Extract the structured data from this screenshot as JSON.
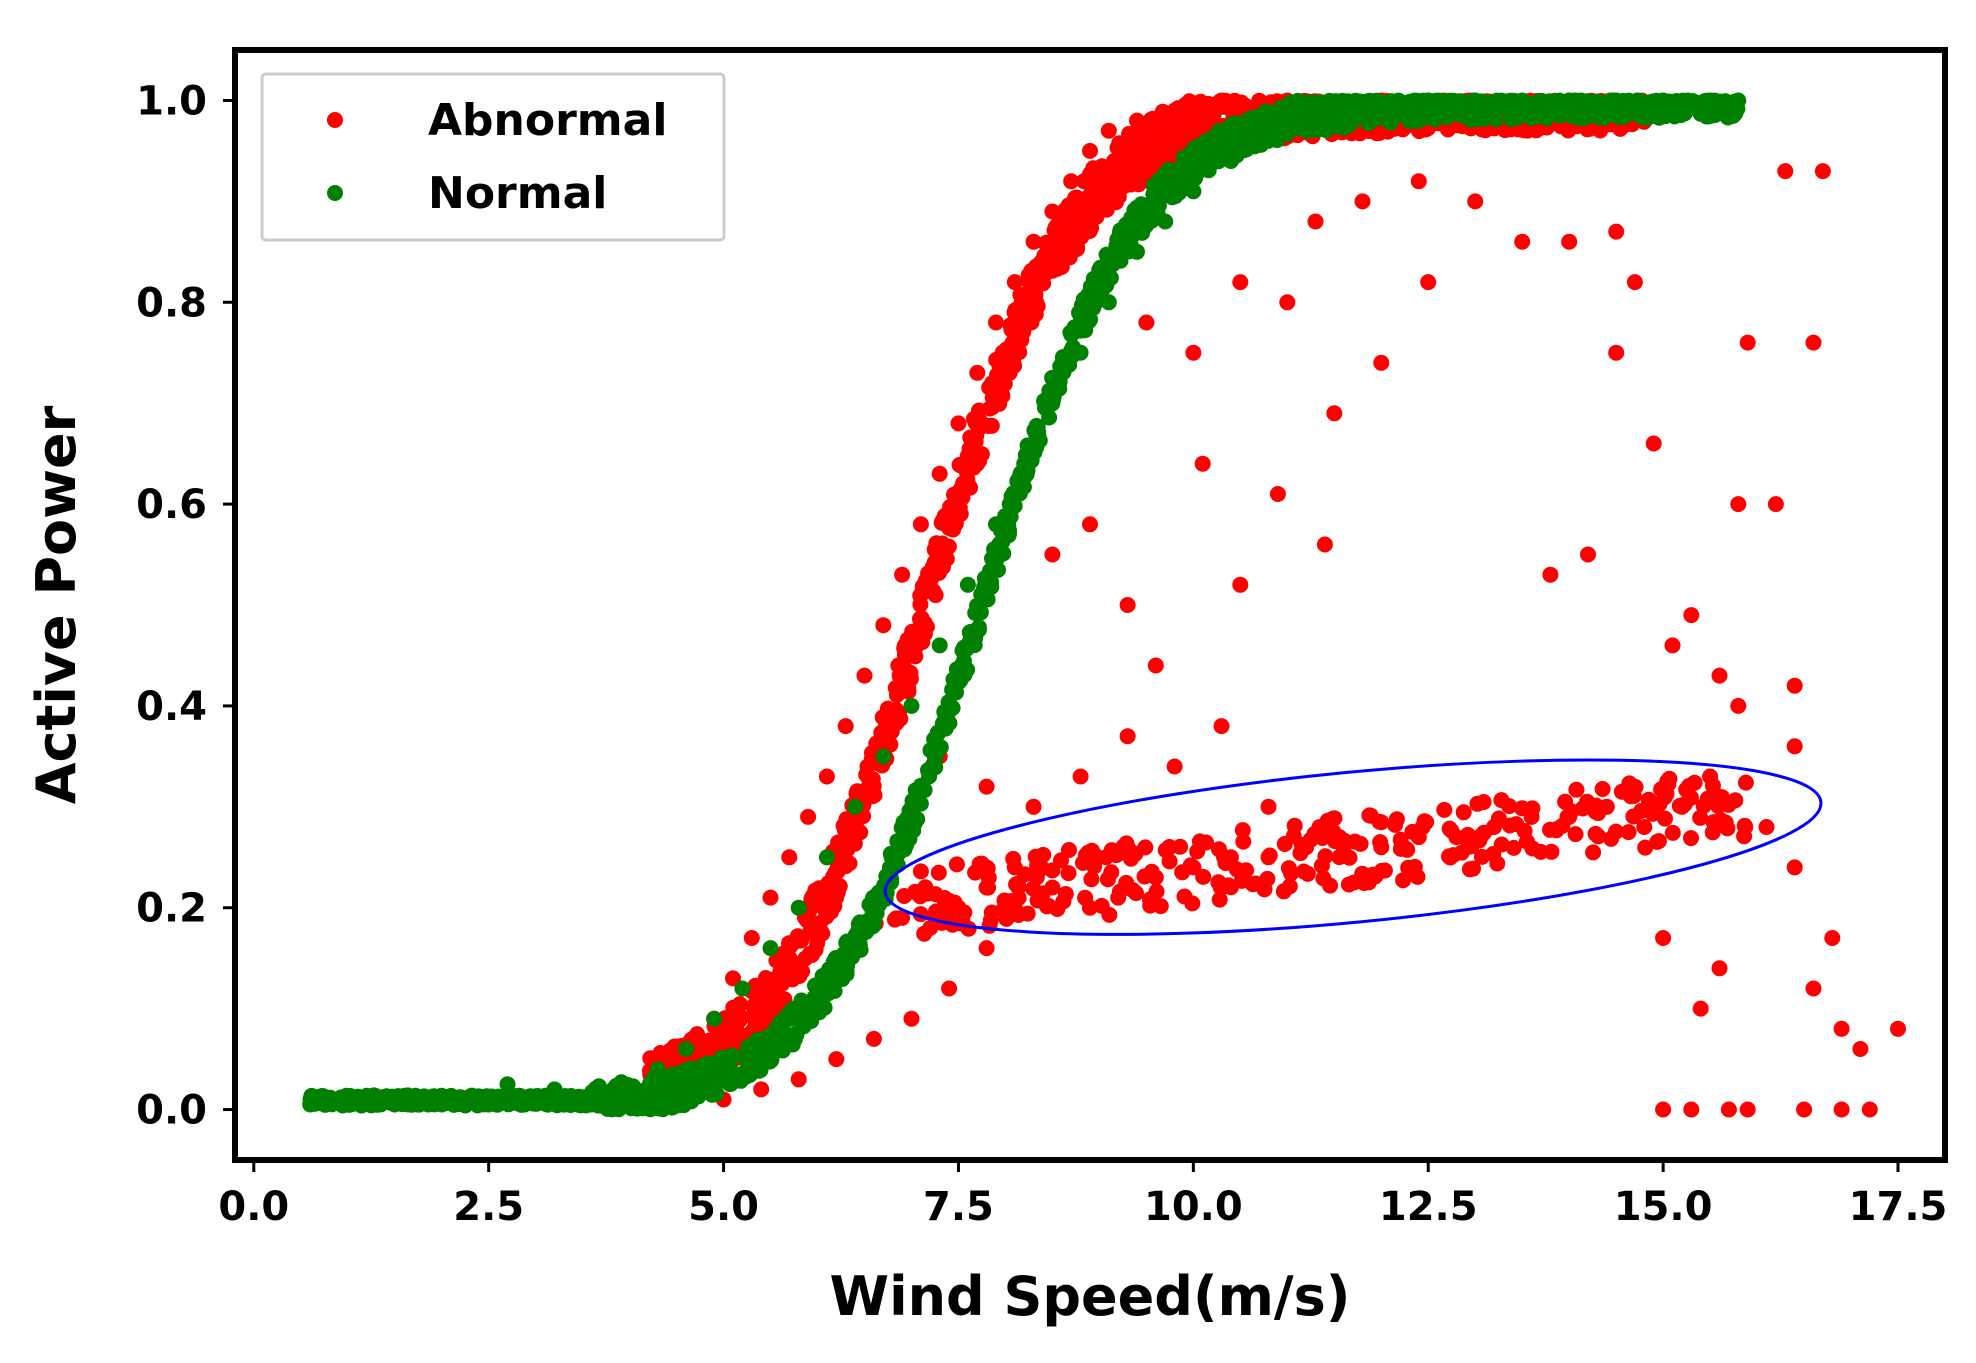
{
  "chart_data": {
    "type": "scatter",
    "title": "",
    "xlabel": "Wind Speed(m/s)",
    "ylabel": "Active Power",
    "xlim": [
      -0.2,
      18.0
    ],
    "ylim": [
      -0.05,
      1.05
    ],
    "xticks": [
      0.0,
      2.5,
      5.0,
      7.5,
      10.0,
      12.5,
      15.0,
      17.5
    ],
    "xtick_labels": [
      "0.0",
      "2.5",
      "5.0",
      "7.5",
      "10.0",
      "12.5",
      "15.0",
      "17.5"
    ],
    "yticks": [
      0.0,
      0.2,
      0.4,
      0.6,
      0.8,
      1.0
    ],
    "ytick_labels": [
      "0.0",
      "0.2",
      "0.4",
      "0.6",
      "0.8",
      "1.0"
    ],
    "legend_position": "top-left",
    "series": [
      {
        "name": "Abnormal",
        "color": "#ff0000",
        "description": "dense band left of normal curve plus scattered outliers",
        "points": [
          [
            4.3,
            0.01
          ],
          [
            4.5,
            0.03
          ],
          [
            4.7,
            0.05
          ],
          [
            4.9,
            0.09
          ],
          [
            5.1,
            0.13
          ],
          [
            5.3,
            0.17
          ],
          [
            5.5,
            0.21
          ],
          [
            5.7,
            0.25
          ],
          [
            5.9,
            0.29
          ],
          [
            6.1,
            0.33
          ],
          [
            6.3,
            0.38
          ],
          [
            6.5,
            0.43
          ],
          [
            6.7,
            0.48
          ],
          [
            6.9,
            0.53
          ],
          [
            7.1,
            0.58
          ],
          [
            7.3,
            0.63
          ],
          [
            7.5,
            0.68
          ],
          [
            7.7,
            0.73
          ],
          [
            7.9,
            0.78
          ],
          [
            8.1,
            0.82
          ],
          [
            8.3,
            0.86
          ],
          [
            8.5,
            0.89
          ],
          [
            8.7,
            0.92
          ],
          [
            8.9,
            0.95
          ],
          [
            9.1,
            0.97
          ],
          [
            9.4,
            0.98
          ],
          [
            9.8,
            0.99
          ],
          [
            10.3,
            1.0
          ],
          [
            11.0,
            1.0
          ],
          [
            12.0,
            1.0
          ],
          [
            13.0,
            1.0
          ],
          [
            14.0,
            1.0
          ],
          [
            14.8,
            0.99
          ],
          [
            5.0,
            0.01
          ],
          [
            5.4,
            0.02
          ],
          [
            5.8,
            0.03
          ],
          [
            6.2,
            0.05
          ],
          [
            6.6,
            0.07
          ],
          [
            7.0,
            0.09
          ],
          [
            7.4,
            0.12
          ],
          [
            7.8,
            0.16
          ],
          [
            6.6,
            0.21
          ],
          [
            6.9,
            0.19
          ],
          [
            7.2,
            0.18
          ],
          [
            7.5,
            0.2
          ],
          [
            7.8,
            0.22
          ],
          [
            8.1,
            0.24
          ],
          [
            8.5,
            0.22
          ],
          [
            8.9,
            0.2
          ],
          [
            9.2,
            0.21
          ],
          [
            9.6,
            0.23
          ],
          [
            10.0,
            0.24
          ],
          [
            10.4,
            0.25
          ],
          [
            10.8,
            0.25
          ],
          [
            11.2,
            0.26
          ],
          [
            11.6,
            0.26
          ],
          [
            12.0,
            0.26
          ],
          [
            12.4,
            0.27
          ],
          [
            12.8,
            0.27
          ],
          [
            13.2,
            0.28
          ],
          [
            13.6,
            0.29
          ],
          [
            14.0,
            0.29
          ],
          [
            14.4,
            0.3
          ],
          [
            14.8,
            0.28
          ],
          [
            15.2,
            0.3
          ],
          [
            15.6,
            0.31
          ],
          [
            7.3,
            0.35
          ],
          [
            7.8,
            0.32
          ],
          [
            8.3,
            0.3
          ],
          [
            8.8,
            0.33
          ],
          [
            9.3,
            0.37
          ],
          [
            9.8,
            0.34
          ],
          [
            10.3,
            0.38
          ],
          [
            10.8,
            0.3
          ],
          [
            8.5,
            0.55
          ],
          [
            8.9,
            0.58
          ],
          [
            9.3,
            0.5
          ],
          [
            9.6,
            0.44
          ],
          [
            10.1,
            0.64
          ],
          [
            10.5,
            0.52
          ],
          [
            10.9,
            0.61
          ],
          [
            11.4,
            0.56
          ],
          [
            9.5,
            0.78
          ],
          [
            10.0,
            0.75
          ],
          [
            10.5,
            0.82
          ],
          [
            11.0,
            0.8
          ],
          [
            11.5,
            0.69
          ],
          [
            12.0,
            0.74
          ],
          [
            12.5,
            0.82
          ],
          [
            13.0,
            0.9
          ],
          [
            11.3,
            0.88
          ],
          [
            11.8,
            0.9
          ],
          [
            12.4,
            0.92
          ],
          [
            13.5,
            0.86
          ],
          [
            14.0,
            0.86
          ],
          [
            14.5,
            0.87
          ],
          [
            14.7,
            0.82
          ],
          [
            13.8,
            0.53
          ],
          [
            14.2,
            0.55
          ],
          [
            14.5,
            0.75
          ],
          [
            14.9,
            0.66
          ],
          [
            15.1,
            0.46
          ],
          [
            15.3,
            0.49
          ],
          [
            15.6,
            0.43
          ],
          [
            15.8,
            0.6
          ],
          [
            15.9,
            0.76
          ],
          [
            16.2,
            0.6
          ],
          [
            16.3,
            0.93
          ],
          [
            16.6,
            0.76
          ],
          [
            16.7,
            0.93
          ],
          [
            15.0,
            0.17
          ],
          [
            15.4,
            0.1
          ],
          [
            15.6,
            0.14
          ],
          [
            16.4,
            0.24
          ],
          [
            16.6,
            0.12
          ],
          [
            16.8,
            0.17
          ],
          [
            16.9,
            0.08
          ],
          [
            17.1,
            0.06
          ],
          [
            17.5,
            0.08
          ],
          [
            15.0,
            0.0
          ],
          [
            15.3,
            0.0
          ],
          [
            15.7,
            0.0
          ],
          [
            15.9,
            0.0
          ],
          [
            16.5,
            0.0
          ],
          [
            16.9,
            0.0
          ],
          [
            17.2,
            0.0
          ],
          [
            15.5,
            0.33
          ],
          [
            15.8,
            0.4
          ],
          [
            16.1,
            0.28
          ],
          [
            16.4,
            0.36
          ],
          [
            16.4,
            0.42
          ]
        ]
      },
      {
        "name": "Normal",
        "color": "#008000",
        "description": "dense sigmoid band",
        "points": [
          [
            0.6,
            0.005
          ],
          [
            1.0,
            0.005
          ],
          [
            1.5,
            0.005
          ],
          [
            2.0,
            0.005
          ],
          [
            2.5,
            0.005
          ],
          [
            3.0,
            0.008
          ],
          [
            3.5,
            0.012
          ],
          [
            4.0,
            0.02
          ],
          [
            4.3,
            0.04
          ],
          [
            4.6,
            0.06
          ],
          [
            4.9,
            0.09
          ],
          [
            5.2,
            0.12
          ],
          [
            5.5,
            0.16
          ],
          [
            5.8,
            0.2
          ],
          [
            6.1,
            0.25
          ],
          [
            6.4,
            0.3
          ],
          [
            6.7,
            0.35
          ],
          [
            7.0,
            0.4
          ],
          [
            7.3,
            0.46
          ],
          [
            7.6,
            0.52
          ],
          [
            7.9,
            0.58
          ],
          [
            8.2,
            0.64
          ],
          [
            8.5,
            0.7
          ],
          [
            8.8,
            0.75
          ],
          [
            9.1,
            0.8
          ],
          [
            9.4,
            0.85
          ],
          [
            9.7,
            0.88
          ],
          [
            10.0,
            0.91
          ],
          [
            10.4,
            0.94
          ],
          [
            10.8,
            0.96
          ],
          [
            11.2,
            0.97
          ],
          [
            11.6,
            0.98
          ],
          [
            12.0,
            0.99
          ],
          [
            12.5,
            1.0
          ],
          [
            13.0,
            1.0
          ],
          [
            13.5,
            1.0
          ],
          [
            14.0,
            1.0
          ],
          [
            14.5,
            1.0
          ],
          [
            15.0,
            1.0
          ],
          [
            15.5,
            1.0
          ],
          [
            15.8,
            1.0
          ],
          [
            2.7,
            0.025
          ],
          [
            3.2,
            0.02
          ]
        ]
      }
    ],
    "annotations": [
      {
        "type": "ellipse",
        "color": "#0000ff",
        "label": "",
        "center": [
          11.7,
          0.26
        ],
        "description": "ellipse around low-power abnormal band"
      }
    ]
  }
}
